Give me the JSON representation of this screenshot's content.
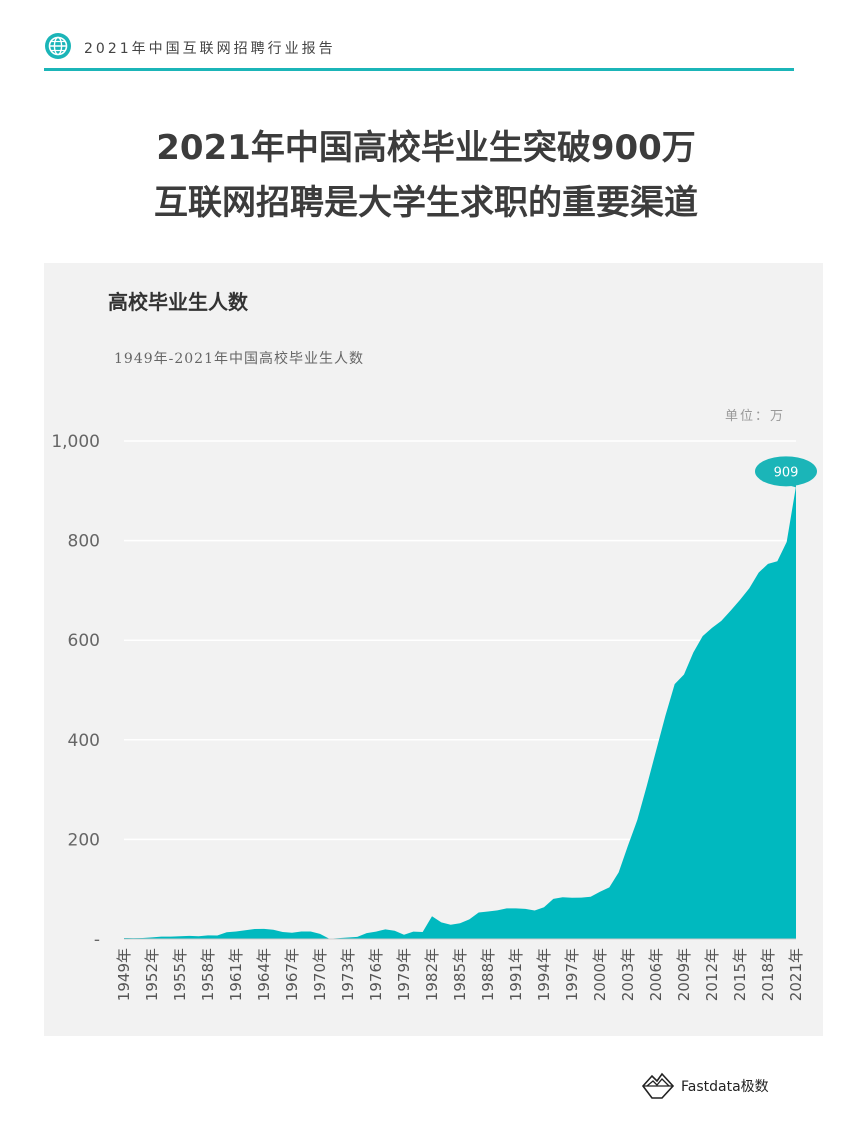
{
  "header": {
    "title": "2021年中国互联网招聘行业报告",
    "icon": "globe-icon",
    "accent": "#1bb5b8"
  },
  "headline": {
    "line1": "2021年中国高校毕业生突破900万",
    "line2": "互联网招聘是大学生求职的重要渠道"
  },
  "panel": {
    "title": "高校毕业生人数",
    "unit": "单位：万"
  },
  "chart_data": {
    "type": "area",
    "title": "1949年-2021年中国高校毕业生人数",
    "xlabel": "",
    "ylabel": "",
    "ylim": [
      0,
      1000
    ],
    "yticks": [
      0,
      200,
      400,
      600,
      800,
      1000
    ],
    "ytick_labels": [
      "-",
      "200",
      "400",
      "600",
      "800",
      "1,000"
    ],
    "xtick_labels": [
      "1949年",
      "1952年",
      "1955年",
      "1958年",
      "1961年",
      "1964年",
      "1967年",
      "1970年",
      "1973年",
      "1976年",
      "1979年",
      "1982年",
      "1985年",
      "1988年",
      "1991年",
      "1994年",
      "1997年",
      "2000年",
      "2003年",
      "2006年",
      "2009年",
      "2012年",
      "2015年",
      "2018年",
      "2021年"
    ],
    "x": [
      1949,
      1950,
      1951,
      1952,
      1953,
      1954,
      1955,
      1956,
      1957,
      1958,
      1959,
      1960,
      1961,
      1962,
      1963,
      1964,
      1965,
      1966,
      1967,
      1968,
      1969,
      1970,
      1971,
      1972,
      1973,
      1974,
      1975,
      1976,
      1977,
      1978,
      1979,
      1980,
      1981,
      1982,
      1983,
      1984,
      1985,
      1986,
      1987,
      1988,
      1989,
      1990,
      1991,
      1992,
      1993,
      1994,
      1995,
      1996,
      1997,
      1998,
      1999,
      2000,
      2001,
      2002,
      2003,
      2004,
      2005,
      2006,
      2007,
      2008,
      2009,
      2010,
      2011,
      2012,
      2013,
      2014,
      2015,
      2016,
      2017,
      2018,
      2019,
      2020,
      2021
    ],
    "series": [
      {
        "values": [
          2.1,
          1.8,
          1.9,
          3.2,
          4.8,
          4.7,
          5.5,
          6.3,
          5.6,
          7.2,
          7.0,
          13.6,
          15.1,
          17.7,
          20.0,
          20.4,
          18.6,
          14.1,
          12.5,
          15.0,
          15.0,
          10.3,
          0.6,
          1.7,
          3.0,
          4.3,
          11.9,
          14.9,
          19.4,
          16.5,
          8.5,
          14.7,
          14.0,
          45.7,
          33.5,
          28.7,
          31.6,
          39.3,
          53.2,
          55.3,
          57.6,
          61.4,
          61.4,
          60.4,
          57.1,
          63.7,
          80.5,
          83.9,
          82.9,
          83.0,
          84.8,
          95.0,
          103.6,
          133.7,
          187.7,
          239.1,
          306.8,
          377.5,
          447.8,
          511.9,
          531.1,
          575.4,
          608.2,
          624.7,
          638.7,
          659.4,
          680.9,
          704.2,
          735.8,
          753.3,
          758.5,
          797.2,
          909.0
        ]
      }
    ],
    "annotation": "909",
    "grid": true,
    "fill_color": "#00b9bf",
    "callout_color": "#1bb5b8"
  },
  "logo": {
    "text": "Fastdata极数",
    "icon": "mountain-logo-icon"
  }
}
